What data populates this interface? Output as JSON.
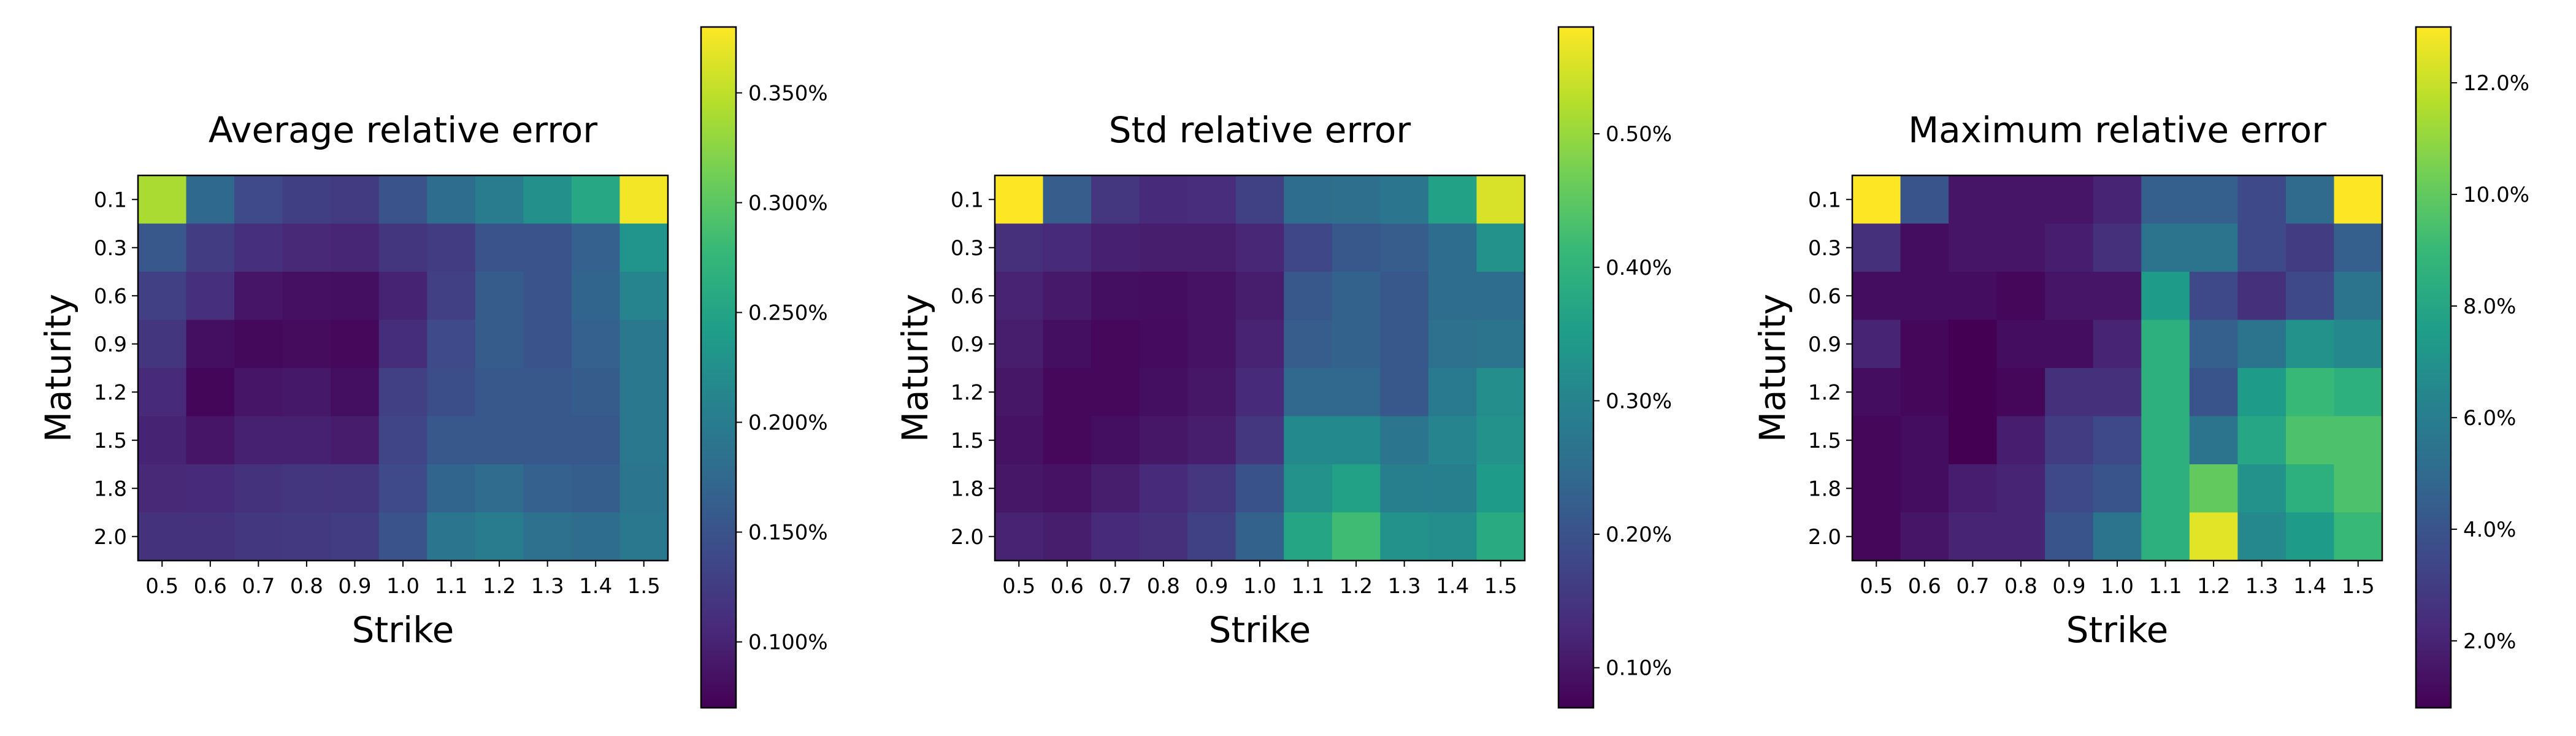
{
  "chart_data": [
    {
      "type": "heatmap",
      "title": "Average relative error",
      "xlabel": "Strike",
      "ylabel": "Maturity",
      "x": [
        "0.5",
        "0.6",
        "0.7",
        "0.8",
        "0.9",
        "1.0",
        "1.1",
        "1.2",
        "1.3",
        "1.4",
        "1.5"
      ],
      "y": [
        "0.1",
        "0.3",
        "0.6",
        "0.9",
        "1.2",
        "1.5",
        "1.8",
        "2.0"
      ],
      "values": [
        [
          0.34,
          0.175,
          0.14,
          0.128,
          0.124,
          0.15,
          0.18,
          0.2,
          0.225,
          0.255,
          0.375
        ],
        [
          0.155,
          0.125,
          0.112,
          0.105,
          0.103,
          0.118,
          0.125,
          0.15,
          0.15,
          0.165,
          0.23
        ],
        [
          0.13,
          0.112,
          0.088,
          0.083,
          0.082,
          0.1,
          0.13,
          0.16,
          0.15,
          0.17,
          0.21
        ],
        [
          0.118,
          0.082,
          0.077,
          0.08,
          0.076,
          0.11,
          0.14,
          0.16,
          0.15,
          0.165,
          0.195
        ],
        [
          0.108,
          0.074,
          0.088,
          0.09,
          0.082,
          0.13,
          0.145,
          0.155,
          0.155,
          0.16,
          0.195
        ],
        [
          0.1,
          0.088,
          0.098,
          0.098,
          0.094,
          0.135,
          0.155,
          0.155,
          0.155,
          0.155,
          0.195
        ],
        [
          0.105,
          0.108,
          0.115,
          0.118,
          0.118,
          0.14,
          0.17,
          0.178,
          0.165,
          0.162,
          0.19
        ],
        [
          0.115,
          0.115,
          0.12,
          0.122,
          0.125,
          0.15,
          0.19,
          0.198,
          0.185,
          0.18,
          0.195
        ]
      ],
      "colorbar": {
        "min": 0.07,
        "max": 0.38,
        "ticks": [
          0.1,
          0.15,
          0.2,
          0.25,
          0.3,
          0.35
        ],
        "tick_labels": [
          "0.100%",
          "0.150%",
          "0.200%",
          "0.250%",
          "0.300%",
          "0.350%"
        ]
      },
      "colormap": "viridis"
    },
    {
      "type": "heatmap",
      "title": "Std relative error",
      "xlabel": "Strike",
      "ylabel": "Maturity",
      "x": [
        "0.5",
        "0.6",
        "0.7",
        "0.8",
        "0.9",
        "1.0",
        "1.1",
        "1.2",
        "1.3",
        "1.4",
        "1.5"
      ],
      "y": [
        "0.1",
        "0.3",
        "0.6",
        "0.9",
        "1.2",
        "1.5",
        "1.8",
        "2.0"
      ],
      "values": [
        [
          0.58,
          0.22,
          0.15,
          0.13,
          0.135,
          0.17,
          0.25,
          0.255,
          0.27,
          0.36,
          0.55
        ],
        [
          0.14,
          0.13,
          0.115,
          0.11,
          0.11,
          0.125,
          0.18,
          0.21,
          0.22,
          0.25,
          0.33
        ],
        [
          0.12,
          0.105,
          0.09,
          0.088,
          0.095,
          0.11,
          0.21,
          0.23,
          0.21,
          0.25,
          0.25
        ],
        [
          0.11,
          0.09,
          0.08,
          0.085,
          0.095,
          0.12,
          0.22,
          0.23,
          0.21,
          0.26,
          0.265
        ],
        [
          0.1,
          0.08,
          0.08,
          0.09,
          0.1,
          0.13,
          0.24,
          0.24,
          0.21,
          0.28,
          0.32
        ],
        [
          0.095,
          0.08,
          0.09,
          0.1,
          0.11,
          0.15,
          0.31,
          0.31,
          0.27,
          0.3,
          0.33
        ],
        [
          0.1,
          0.095,
          0.11,
          0.13,
          0.15,
          0.2,
          0.33,
          0.36,
          0.29,
          0.29,
          0.35
        ],
        [
          0.12,
          0.11,
          0.13,
          0.14,
          0.17,
          0.23,
          0.37,
          0.42,
          0.33,
          0.32,
          0.38
        ]
      ],
      "colorbar": {
        "min": 0.07,
        "max": 0.58,
        "ticks": [
          0.1,
          0.2,
          0.3,
          0.4,
          0.5
        ],
        "tick_labels": [
          "0.10%",
          "0.20%",
          "0.30%",
          "0.40%",
          "0.50%"
        ]
      },
      "colormap": "viridis"
    },
    {
      "type": "heatmap",
      "title": "Maximum relative error",
      "xlabel": "Strike",
      "ylabel": "Maturity",
      "x": [
        "0.5",
        "0.6",
        "0.7",
        "0.8",
        "0.9",
        "1.0",
        "1.1",
        "1.2",
        "1.3",
        "1.4",
        "1.5"
      ],
      "y": [
        "0.1",
        "0.3",
        "0.6",
        "0.9",
        "1.2",
        "1.5",
        "1.8",
        "2.0"
      ],
      "values": [
        [
          13.0,
          4.0,
          1.5,
          1.5,
          1.5,
          2.0,
          4.5,
          4.5,
          3.5,
          5.0,
          13.0
        ],
        [
          2.5,
          1.2,
          1.5,
          1.5,
          1.8,
          2.5,
          5.5,
          5.5,
          3.5,
          3.0,
          4.5
        ],
        [
          1.2,
          1.2,
          1.2,
          1.0,
          1.5,
          1.5,
          7.5,
          3.5,
          2.5,
          3.5,
          5.5
        ],
        [
          2.0,
          1.0,
          0.8,
          1.2,
          1.2,
          2.0,
          8.5,
          4.5,
          5.5,
          7.0,
          6.5
        ],
        [
          1.2,
          1.0,
          0.8,
          1.0,
          2.5,
          2.5,
          8.5,
          4.0,
          7.5,
          9.0,
          8.5
        ],
        [
          1.0,
          1.2,
          0.8,
          1.8,
          3.0,
          3.5,
          8.5,
          5.5,
          8.0,
          9.5,
          9.5
        ],
        [
          1.0,
          1.2,
          1.8,
          2.0,
          3.5,
          4.0,
          8.5,
          10.0,
          7.0,
          8.5,
          9.5
        ],
        [
          1.0,
          1.5,
          2.0,
          2.0,
          4.0,
          5.5,
          8.5,
          12.5,
          6.5,
          7.5,
          9.0
        ]
      ],
      "colorbar": {
        "min": 0.8,
        "max": 13.0,
        "ticks": [
          2.0,
          4.0,
          6.0,
          8.0,
          10.0,
          12.0
        ],
        "tick_labels": [
          "2.0%",
          "4.0%",
          "6.0%",
          "8.0%",
          "10.0%",
          "12.0%"
        ]
      },
      "colormap": "viridis"
    }
  ]
}
